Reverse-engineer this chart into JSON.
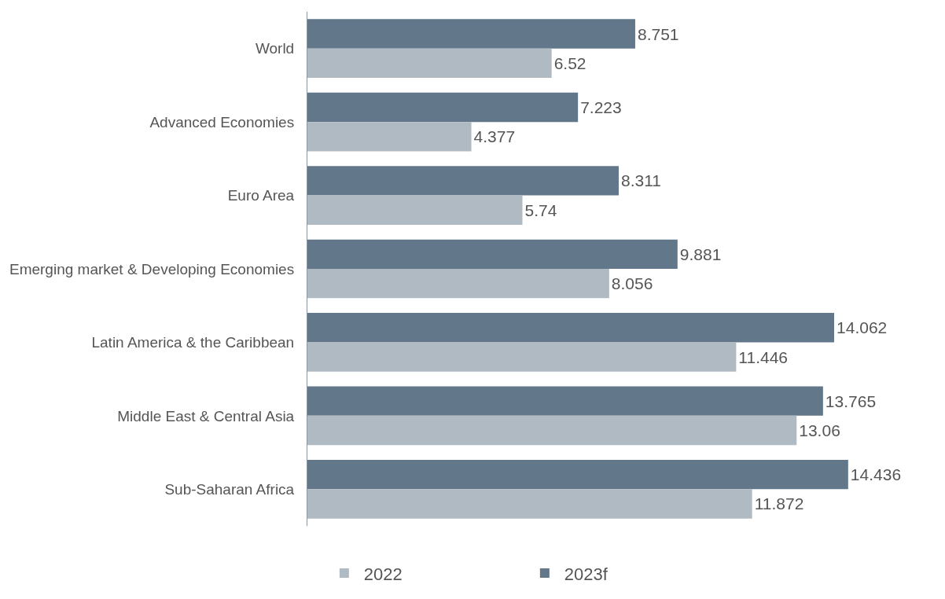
{
  "chart_data": {
    "type": "bar",
    "orientation": "horizontal",
    "categories": [
      "World",
      "Advanced Economies",
      "Euro Area",
      "Emerging market & Developing Economies",
      "Latin America & the Caribbean",
      "Middle East & Central Asia",
      "Sub-Saharan Africa"
    ],
    "series": [
      {
        "name": "2022",
        "color": "#b0bac3",
        "values": [
          6.52,
          4.377,
          5.74,
          8.056,
          11.446,
          13.06,
          11.872
        ]
      },
      {
        "name": "2023f",
        "color": "#627789",
        "values": [
          8.751,
          7.223,
          8.311,
          9.881,
          14.062,
          13.765,
          14.436
        ]
      }
    ],
    "data_labels": true,
    "legend": "bottom",
    "tick_labels": "y"
  }
}
